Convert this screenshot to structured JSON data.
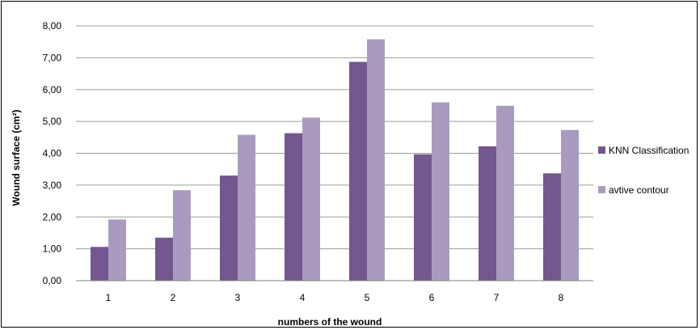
{
  "chart_data": {
    "type": "bar",
    "categories": [
      "1",
      "2",
      "3",
      "4",
      "5",
      "6",
      "7",
      "8"
    ],
    "series": [
      {
        "name": "KNN Classification",
        "color": "#73578f",
        "values": [
          1.06,
          1.35,
          3.3,
          4.63,
          6.87,
          3.97,
          4.22,
          3.37
        ]
      },
      {
        "name": "avtive contour",
        "color": "#a99bc0",
        "values": [
          1.92,
          2.84,
          4.58,
          5.12,
          7.58,
          5.6,
          5.49,
          4.73
        ]
      }
    ],
    "title": "",
    "xlabel": "numbers of the wound",
    "ylabel": "Wound surface (cm²)",
    "ylim": [
      0,
      8
    ],
    "yticks": [
      "0,00",
      "1,00",
      "2,00",
      "3,00",
      "4,00",
      "5,00",
      "6,00",
      "7,00",
      "8,00"
    ],
    "grid": true,
    "gridline_color": "#9c9c9c",
    "legend_position": "right"
  }
}
